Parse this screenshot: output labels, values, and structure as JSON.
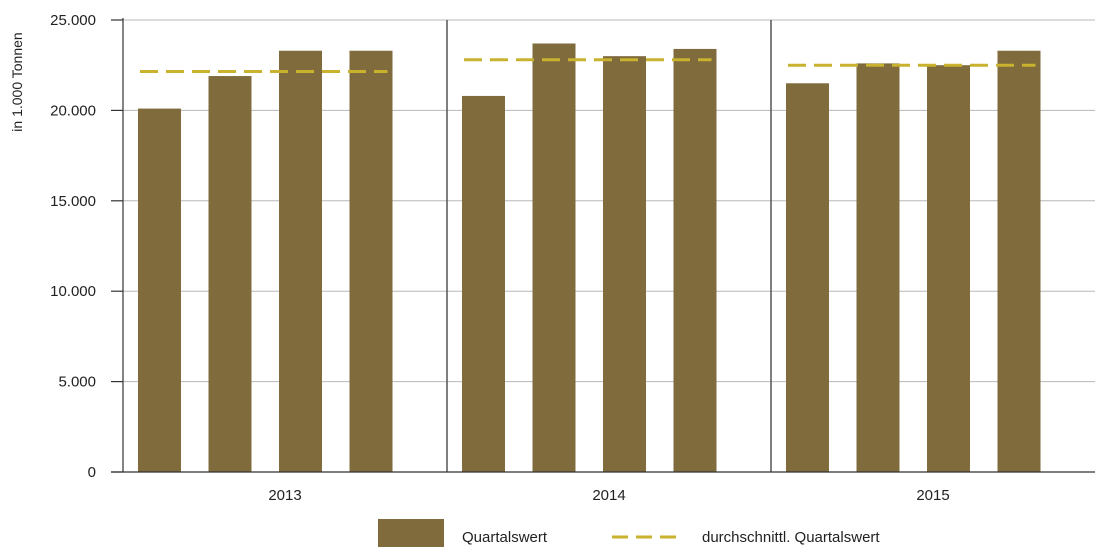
{
  "chart_data": {
    "type": "bar",
    "ylabel": "in 1.000 Tonnen",
    "ylim": [
      0,
      25000
    ],
    "yticks": [
      0,
      5000,
      10000,
      15000,
      20000,
      25000
    ],
    "ytick_labels": [
      "0",
      "5.000",
      "10.000",
      "15.000",
      "20.000",
      "25.000"
    ],
    "grid": true,
    "groups": [
      "2013",
      "2014",
      "2015"
    ],
    "series": [
      {
        "name": "Quartalswert",
        "color": "#7f6b3c",
        "values": [
          [
            20100,
            21900,
            23300,
            23300
          ],
          [
            20800,
            23700,
            23000,
            23400
          ],
          [
            21500,
            22600,
            22500,
            23300
          ]
        ]
      },
      {
        "name": "durchschnittl. Quartalswert",
        "color": "#c9b22e",
        "style": "dashed",
        "values": [
          22150,
          22800,
          22500
        ]
      }
    ],
    "legend_position": "bottom"
  }
}
